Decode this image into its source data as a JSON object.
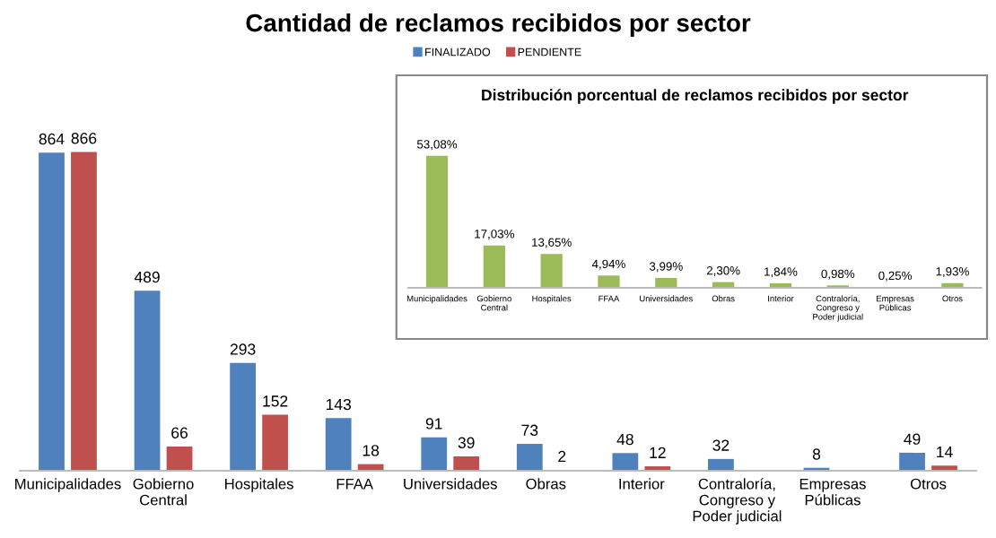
{
  "chart_data": [
    {
      "type": "bar",
      "title": "Cantidad de reclamos recibidos por sector",
      "categories": [
        "Municipalidades",
        "Gobierno\nCentral",
        "Hospitales",
        "FFAA",
        "Universidades",
        "Obras",
        "Interior",
        "Contraloría,\nCongreso y\nPoder judicial",
        "Empresas\nPúblicas",
        "Otros"
      ],
      "series": [
        {
          "name": "FINALIZADO",
          "color": "#4f81bd",
          "values": [
            864,
            489,
            293,
            143,
            91,
            73,
            48,
            32,
            8,
            49
          ]
        },
        {
          "name": "PENDIENTE",
          "color": "#c0504d",
          "values": [
            866,
            66,
            152,
            18,
            39,
            2,
            12,
            null,
            null,
            14
          ]
        }
      ],
      "data_labels": true,
      "legend": "top",
      "grid": false
    },
    {
      "type": "bar",
      "title": "Distribución porcentual de reclamos recibidos por sector",
      "categories": [
        "Municipalidades",
        "Gobierno\nCentral",
        "Hospitales",
        "FFAA",
        "Universidades",
        "Obras",
        "Interior",
        "Contraloría,\nCongreso y\nPoder judicial",
        "Empresas\nPúblicas",
        "Otros"
      ],
      "values": [
        53.08,
        17.03,
        13.65,
        4.94,
        3.99,
        2.3,
        1.84,
        0.98,
        0.25,
        1.93
      ],
      "value_labels": [
        "53,08%",
        "17,03%",
        "13,65%",
        "4,94%",
        "3,99%",
        "2,30%",
        "1,84%",
        "0,98%",
        "0,25%",
        "1,93%"
      ],
      "color": "#9bbb59",
      "grid": false,
      "legend": false
    }
  ]
}
